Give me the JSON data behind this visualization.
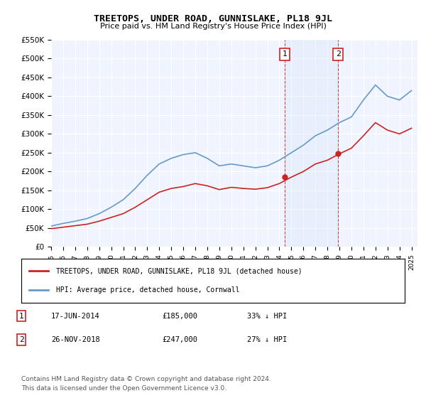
{
  "title": "TREETOPS, UNDER ROAD, GUNNISLAKE, PL18 9JL",
  "subtitle": "Price paid vs. HM Land Registry's House Price Index (HPI)",
  "ylabel_ticks": [
    "£0",
    "£50K",
    "£100K",
    "£150K",
    "£200K",
    "£250K",
    "£300K",
    "£350K",
    "£400K",
    "£450K",
    "£500K",
    "£550K"
  ],
  "ytick_values": [
    0,
    50000,
    100000,
    150000,
    200000,
    250000,
    300000,
    350000,
    400000,
    450000,
    500000,
    550000
  ],
  "background_color": "#ffffff",
  "plot_bg_color": "#f0f4ff",
  "grid_color": "#ffffff",
  "hpi_color": "#6699cc",
  "property_color": "#cc2222",
  "sale1_date": 2014.46,
  "sale1_price": 185000,
  "sale1_label": "1",
  "sale2_date": 2018.9,
  "sale2_price": 247000,
  "sale2_label": "2",
  "legend_property": "TREETOPS, UNDER ROAD, GUNNISLAKE, PL18 9JL (detached house)",
  "legend_hpi": "HPI: Average price, detached house, Cornwall",
  "table_row1": [
    "1",
    "17-JUN-2014",
    "£185,000",
    "33% ↓ HPI"
  ],
  "table_row2": [
    "2",
    "26-NOV-2018",
    "£247,000",
    "27% ↓ HPI"
  ],
  "footnote1": "Contains HM Land Registry data © Crown copyright and database right 2024.",
  "footnote2": "This data is licensed under the Open Government Licence v3.0.",
  "xmin": 1995,
  "xmax": 2025.5,
  "ymin": 0,
  "ymax": 550000
}
